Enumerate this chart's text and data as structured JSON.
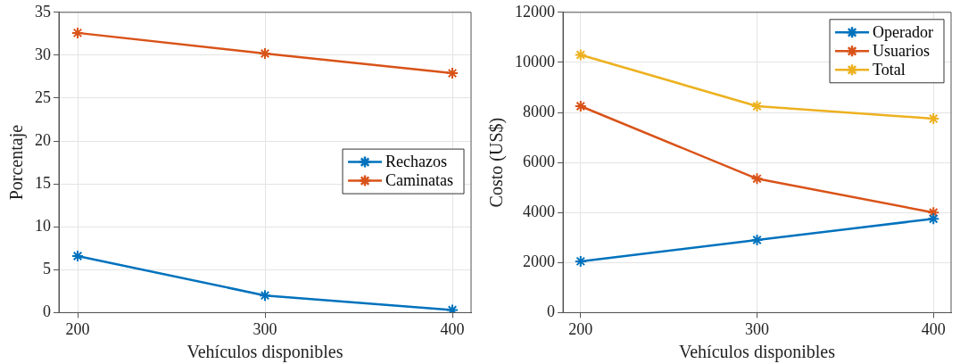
{
  "chart_data": [
    {
      "type": "line",
      "xlabel": "Vehículos disponibles",
      "ylabel": "Porcentaje",
      "x": [
        200,
        300,
        400
      ],
      "xlim": [
        190,
        410
      ],
      "xticks": [
        200,
        300,
        400
      ],
      "ylim": [
        0,
        35
      ],
      "yticks": [
        0,
        5,
        10,
        15,
        20,
        25,
        30,
        35
      ],
      "grid": true,
      "legend": "right",
      "marker": "cross",
      "line_style": "solid",
      "series": [
        {
          "name": "Rechazos",
          "color": "#0072bd",
          "values": [
            6.6,
            2.0,
            0.3
          ]
        },
        {
          "name": "Caminatas",
          "color": "#d95319",
          "values": [
            32.6,
            30.2,
            27.9
          ]
        }
      ]
    },
    {
      "type": "line",
      "xlabel": "Vehículos disponibles",
      "ylabel": "Costo (US$)",
      "x": [
        200,
        300,
        400
      ],
      "xlim": [
        190,
        410
      ],
      "xticks": [
        200,
        300,
        400
      ],
      "ylim": [
        0,
        12000
      ],
      "yticks": [
        0,
        2000,
        4000,
        6000,
        8000,
        10000,
        12000
      ],
      "grid": true,
      "legend": "top right",
      "marker": "cross",
      "line_style": "solid",
      "series": [
        {
          "name": "Operador",
          "color": "#0072bd",
          "values": [
            2050,
            2900,
            3750
          ]
        },
        {
          "name": "Usuarios",
          "color": "#d95319",
          "values": [
            8250,
            5350,
            4000
          ]
        },
        {
          "name": "Total",
          "color": "#edb120",
          "values": [
            10300,
            8250,
            7750
          ]
        }
      ]
    }
  ]
}
